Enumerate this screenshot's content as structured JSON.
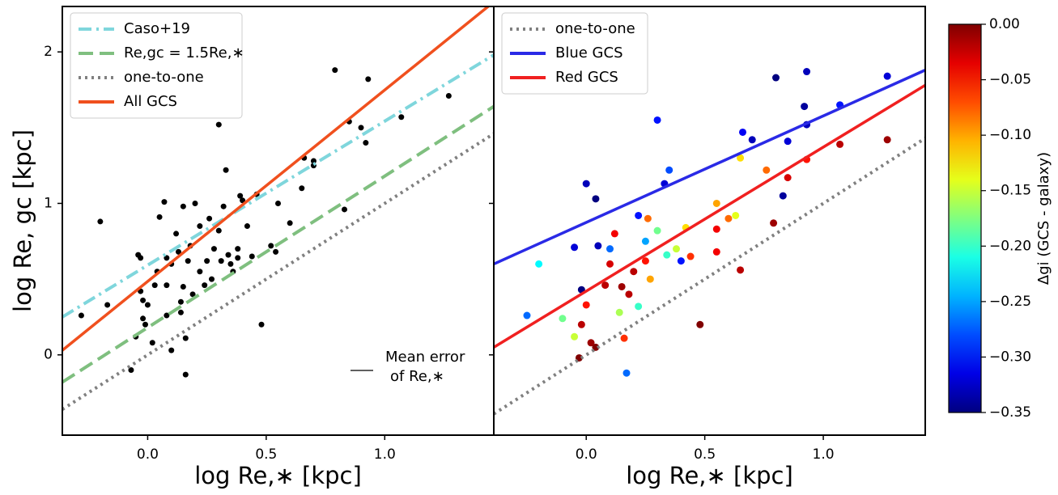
{
  "chart_data": [
    {
      "type": "scatter",
      "x_label": "log Re,∗  [kpc]",
      "y_label": "log Re, gc [kpc]",
      "xlim": [
        -0.36,
        1.46
      ],
      "ylim": [
        -0.53,
        2.3
      ],
      "xticks": [
        {
          "value": 0,
          "label": "0.0"
        },
        {
          "value": 0.5,
          "label": "0.5"
        },
        {
          "value": 1,
          "label": "1.0"
        }
      ],
      "yticks": [
        0,
        1,
        2
      ],
      "legend": "upper left",
      "series": [
        {
          "name": "Caso+19",
          "color": "#7fd6dc",
          "linestyle": "dashdot",
          "x": [
            -0.36,
            1.46
          ],
          "values": [
            0.25,
            1.98
          ]
        },
        {
          "name": "Re,gc = 1.5Re,∗",
          "color": "#7fbf7f",
          "linestyle": "dashed",
          "x": [
            -0.36,
            1.46
          ],
          "values": [
            -0.18,
            1.64
          ]
        },
        {
          "name": "one-to-one",
          "color": "#808080",
          "linestyle": "dotted",
          "x": [
            -0.36,
            1.46
          ],
          "values": [
            -0.36,
            1.46
          ]
        },
        {
          "name": "All GCS",
          "color": "#f0501e",
          "linestyle": "solid",
          "x": [
            -0.36,
            1.46
          ],
          "values": [
            0.03,
            2.33
          ]
        }
      ],
      "points": {
        "color": "#000000",
        "x": [
          -0.28,
          -0.2,
          -0.17,
          -0.04,
          -0.03,
          -0.03,
          -0.02,
          -0.02,
          -0.01,
          0.0,
          -0.05,
          -0.07,
          0.02,
          0.03,
          0.04,
          0.05,
          0.07,
          0.08,
          0.08,
          0.08,
          0.1,
          0.1,
          0.12,
          0.13,
          0.14,
          0.14,
          0.15,
          0.15,
          0.16,
          0.16,
          0.17,
          0.18,
          0.19,
          0.2,
          0.22,
          0.22,
          0.24,
          0.25,
          0.26,
          0.27,
          0.28,
          0.3,
          0.3,
          0.31,
          0.32,
          0.33,
          0.34,
          0.35,
          0.36,
          0.38,
          0.38,
          0.39,
          0.4,
          0.42,
          0.44,
          0.46,
          0.48,
          0.52,
          0.55,
          0.54,
          0.6,
          0.65,
          0.66,
          0.7,
          0.7,
          0.79,
          0.83,
          0.85,
          0.9,
          0.92,
          0.93,
          1.07,
          1.27
        ],
        "values": [
          0.26,
          0.88,
          0.33,
          0.66,
          0.64,
          0.42,
          0.36,
          0.24,
          0.2,
          0.33,
          0.12,
          -0.1,
          0.08,
          0.46,
          0.55,
          0.91,
          1.01,
          0.64,
          0.46,
          0.26,
          0.6,
          0.03,
          0.8,
          0.68,
          0.35,
          0.28,
          0.45,
          0.98,
          0.11,
          -0.13,
          0.62,
          0.72,
          0.4,
          1.0,
          0.55,
          0.85,
          0.46,
          0.62,
          0.9,
          0.5,
          0.7,
          0.82,
          1.52,
          0.62,
          0.98,
          1.22,
          0.66,
          0.6,
          0.55,
          0.7,
          0.64,
          1.05,
          1.02,
          0.85,
          0.65,
          1.06,
          0.2,
          0.72,
          1.0,
          0.68,
          0.87,
          1.1,
          1.3,
          1.25,
          1.28,
          1.88,
          0.96,
          1.54,
          1.5,
          1.4,
          1.82,
          1.57,
          1.71
        ]
      },
      "annotation": [
        "Mean error",
        "of Re,∗"
      ]
    },
    {
      "type": "scatter",
      "x_label": "log Re,∗  [kpc]",
      "xlim": [
        -0.39,
        1.43
      ],
      "ylim": [
        -0.53,
        2.3
      ],
      "xticks": [
        {
          "value": 0,
          "label": "0.0"
        },
        {
          "value": 0.5,
          "label": "0.5"
        },
        {
          "value": 1,
          "label": "1.0"
        }
      ],
      "legend": "upper left",
      "series": [
        {
          "name": "one-to-one",
          "color": "#808080",
          "linestyle": "dotted",
          "x": [
            -0.39,
            1.43
          ],
          "values": [
            -0.39,
            1.43
          ]
        },
        {
          "name": "Blue GCS",
          "color": "#2a2ae6",
          "linestyle": "solid",
          "x": [
            -0.39,
            1.43
          ],
          "values": [
            0.6,
            1.88
          ]
        },
        {
          "name": "Red GCS",
          "color": "#f02020",
          "linestyle": "solid",
          "x": [
            -0.39,
            1.43
          ],
          "values": [
            0.05,
            1.78
          ]
        }
      ],
      "points": {
        "cmap": "jet",
        "x": [
          0.8,
          0.93,
          1.27,
          1.07,
          0.92,
          0.93,
          0.85,
          0.66,
          0.7,
          0.3,
          0.0,
          0.04,
          0.22,
          0.35,
          0.33,
          0.83,
          -0.05,
          0.05,
          -0.02,
          0.1,
          0.25,
          0.4,
          -0.25,
          0.17,
          0.34,
          1.27,
          1.07,
          0.93,
          0.85,
          0.79,
          0.65,
          0.48,
          0.6,
          0.55,
          0.55,
          0.44,
          0.42,
          0.38,
          0.3,
          0.25,
          0.2,
          0.15,
          0.12,
          0.1,
          0.08,
          0.04,
          0.02,
          -0.03,
          -0.02,
          0.0,
          -0.05,
          -0.1,
          0.14,
          0.16,
          0.18,
          0.27,
          0.26,
          0.22,
          -0.2,
          0.55,
          0.63,
          0.76,
          0.65
        ],
        "values": [
          1.83,
          1.87,
          1.84,
          1.65,
          1.64,
          1.52,
          1.41,
          1.47,
          1.42,
          1.55,
          1.13,
          1.03,
          0.92,
          1.22,
          1.13,
          1.05,
          0.71,
          0.72,
          0.43,
          0.7,
          0.75,
          0.62,
          0.26,
          -0.12,
          0.66,
          1.42,
          1.39,
          1.29,
          1.17,
          0.87,
          0.56,
          0.2,
          0.9,
          1.0,
          0.68,
          0.65,
          0.84,
          0.7,
          0.82,
          0.62,
          0.55,
          0.45,
          0.8,
          0.6,
          0.46,
          0.05,
          0.08,
          -0.02,
          0.2,
          0.33,
          0.12,
          0.24,
          0.28,
          0.11,
          0.4,
          0.5,
          0.9,
          0.32,
          0.6,
          0.83,
          0.92,
          1.22,
          1.3
        ],
        "c": [
          -0.35,
          -0.33,
          -0.32,
          -0.3,
          -0.34,
          -0.33,
          -0.32,
          -0.31,
          -0.33,
          -0.3,
          -0.33,
          -0.35,
          -0.3,
          -0.28,
          -0.32,
          -0.34,
          -0.32,
          -0.33,
          -0.35,
          -0.27,
          -0.25,
          -0.3,
          -0.27,
          -0.27,
          -0.2,
          -0.01,
          -0.02,
          -0.05,
          -0.03,
          -0.01,
          -0.02,
          0.0,
          -0.08,
          -0.1,
          -0.04,
          -0.06,
          -0.12,
          -0.15,
          -0.18,
          -0.05,
          -0.02,
          -0.01,
          -0.04,
          -0.03,
          -0.02,
          0.0,
          -0.01,
          0.0,
          -0.02,
          -0.05,
          -0.15,
          -0.18,
          -0.16,
          -0.06,
          -0.02,
          -0.1,
          -0.08,
          -0.2,
          -0.22,
          -0.04,
          -0.14,
          -0.08,
          -0.12
        ]
      },
      "colorbar": {
        "label": "Δgi (GCS - galaxy)",
        "clim": [
          -0.35,
          0
        ],
        "ticks": [
          {
            "value": 0,
            "label": "0.00"
          },
          {
            "value": -0.05,
            "label": "−0.05"
          },
          {
            "value": -0.1,
            "label": "−0.10"
          },
          {
            "value": -0.15,
            "label": "−0.15"
          },
          {
            "value": -0.2,
            "label": "−0.20"
          },
          {
            "value": -0.25,
            "label": "−0.25"
          },
          {
            "value": -0.3,
            "label": "−0.30"
          },
          {
            "value": -0.35,
            "label": "−0.35"
          }
        ]
      }
    }
  ]
}
